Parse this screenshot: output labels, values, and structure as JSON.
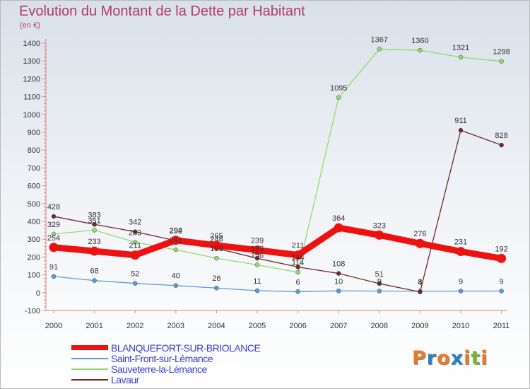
{
  "header": {
    "title": "Evolution du Montant de la Dette par Habitant",
    "unit": "(en €)"
  },
  "logo": {
    "text": "Proxiti",
    "letter_colors": [
      "#e8792a",
      "#2d7fc1",
      "#e8792a",
      "#2d7fc1",
      "#e8792a",
      "#7ab52e",
      "#e8792a"
    ]
  },
  "chart_data": {
    "type": "line",
    "title": "Evolution du Montant de la Dette par Habitant",
    "ylabel": "(en €)",
    "x": [
      "2000",
      "2001",
      "2002",
      "2003",
      "2004",
      "2005",
      "2006",
      "2007",
      "2008",
      "2009",
      "2010",
      "2011"
    ],
    "ylim": [
      -100,
      1400
    ],
    "yticks": [
      -100,
      0,
      100,
      200,
      300,
      400,
      500,
      600,
      700,
      800,
      900,
      1000,
      1100,
      1200,
      1300,
      1400
    ],
    "grid": false,
    "legend_position": "bottom-left",
    "series": [
      {
        "name": "Saint-Front-sur-Lémance",
        "color": "#5b9bd5",
        "values": [
          91,
          68,
          52,
          40,
          26,
          11,
          6,
          10,
          9,
          8,
          9,
          9
        ]
      },
      {
        "name": "Sauveterre-la-Lémance",
        "color": "#8fdc6e",
        "values": [
          329,
          351,
          283,
          241,
          193,
          156,
          114,
          1095,
          1367,
          1360,
          1321,
          1298
        ]
      },
      {
        "name": "Lavaur",
        "color": "#6b2b2b",
        "values": [
          428,
          383,
          342,
          292,
          248,
          193,
          144,
          108,
          51,
          4,
          911,
          828
        ]
      },
      {
        "name": "BLANQUEFORT-SUR-BRIOLANCE",
        "color": "#ee1111",
        "values": [
          254,
          233,
          211,
          294,
          265,
          239,
          211,
          364,
          323,
          276,
          231,
          192
        ],
        "emphasized": true
      }
    ]
  },
  "legend": {
    "items": [
      {
        "label": "BLANQUEFORT-SUR-BRIOLANCE",
        "color": "#ee1111",
        "thick": true
      },
      {
        "label": "Saint-Front-sur-Lémance",
        "color": "#5b9bd5",
        "thick": false
      },
      {
        "label": "Sauveterre-la-Lémance",
        "color": "#8fdc6e",
        "thick": false
      },
      {
        "label": "Lavaur",
        "color": "#6b2b2b",
        "thick": false
      }
    ]
  }
}
